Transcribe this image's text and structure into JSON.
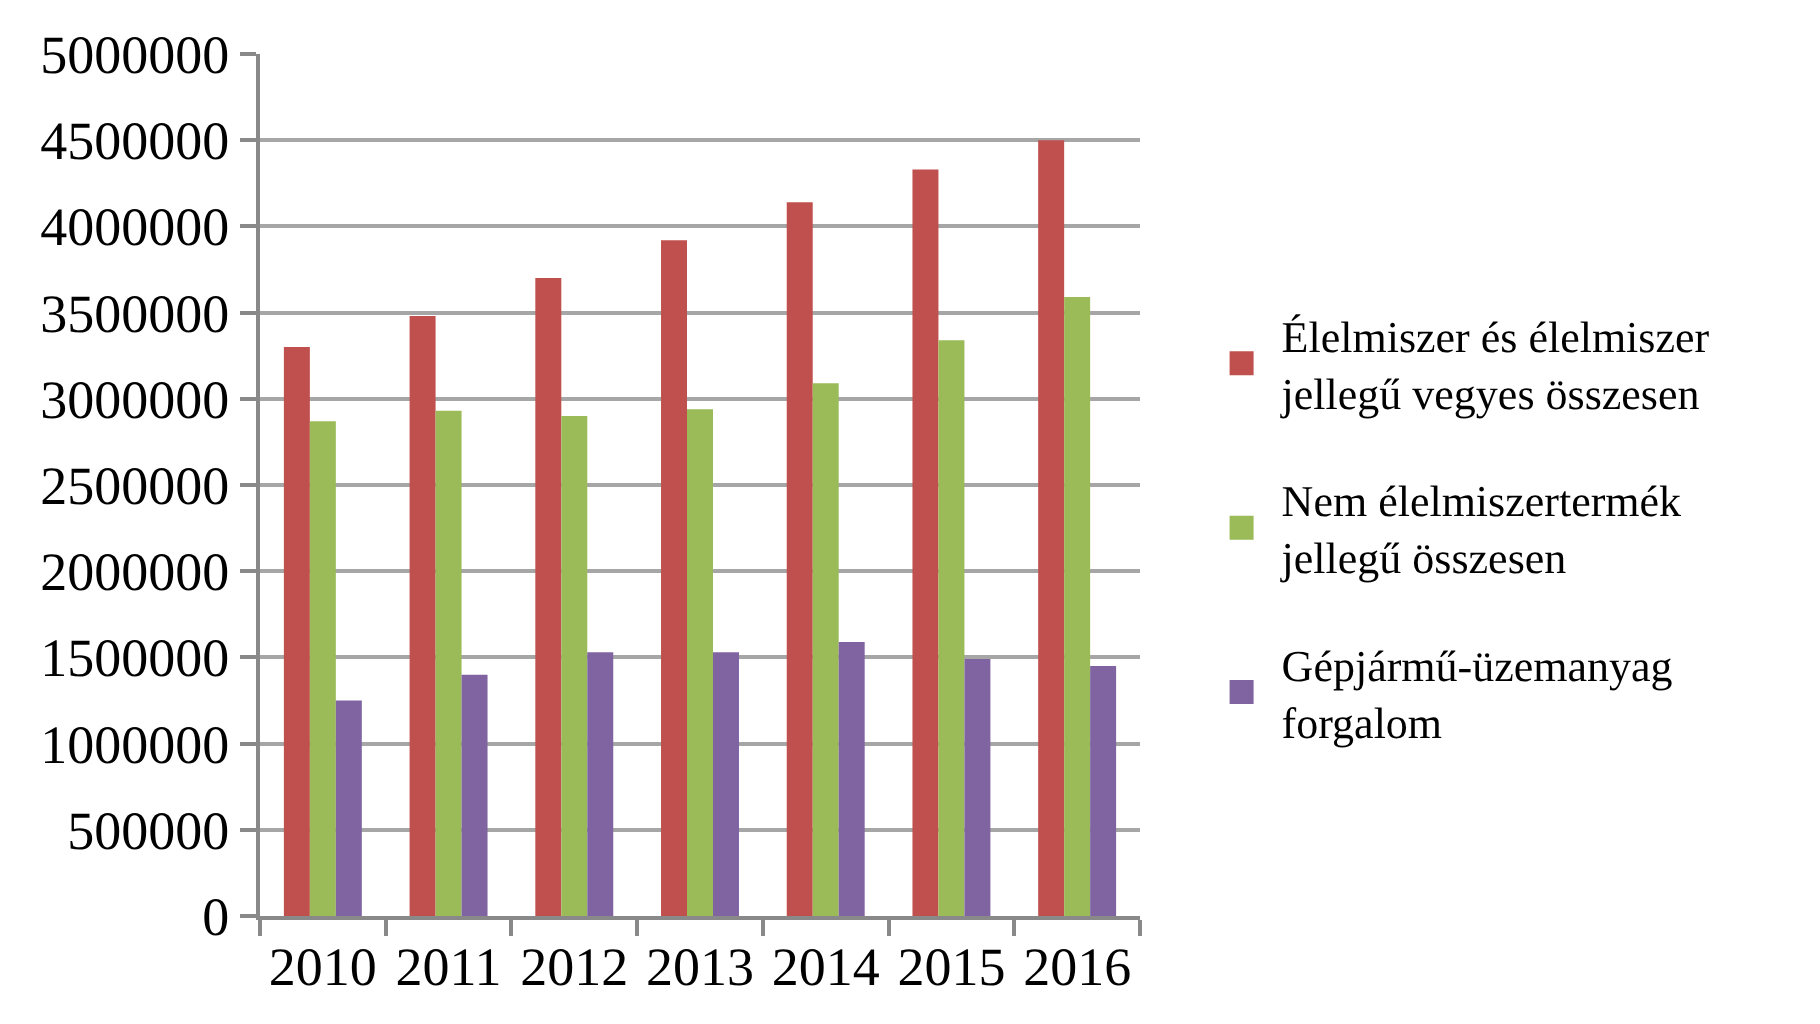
{
  "chart_data": {
    "type": "bar",
    "categories": [
      "2010",
      "2011",
      "2012",
      "2013",
      "2014",
      "2015",
      "2016"
    ],
    "series": [
      {
        "name": "Élelmiszer és élelmiszer jellegű vegyes összesen",
        "color": "#c0504d",
        "values": [
          3300000,
          3480000,
          3700000,
          3920000,
          4140000,
          4330000,
          4500000
        ]
      },
      {
        "name": "Nem élelmiszertermék jellegű összesen",
        "color": "#9bbb59",
        "values": [
          2870000,
          2930000,
          2900000,
          2940000,
          3090000,
          3340000,
          3590000
        ]
      },
      {
        "name": "Gépjármű-üzemanyag forgalom",
        "color": "#8064a2",
        "values": [
          1250000,
          1400000,
          1530000,
          1530000,
          1590000,
          1490000,
          1450000
        ]
      }
    ],
    "ylim": [
      0,
      5000000
    ],
    "yticks": [
      0,
      500000,
      1000000,
      1500000,
      2000000,
      2500000,
      3000000,
      3500000,
      4000000,
      4500000,
      5000000
    ],
    "grid": "y",
    "legend": "right"
  }
}
